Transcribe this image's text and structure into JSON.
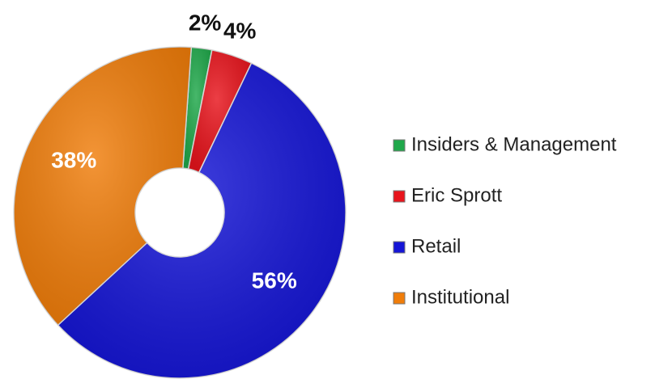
{
  "chart_data": {
    "type": "pie",
    "donut": true,
    "categories": [
      "Insiders & Management",
      "Eric Sprott",
      "Retail",
      "Institutional"
    ],
    "values": [
      2,
      4,
      56,
      38
    ],
    "value_labels": [
      "2%",
      "4%",
      "56%",
      "38%"
    ],
    "colors": [
      "#1fa84a",
      "#e8141c",
      "#1515d6",
      "#f07d0a"
    ],
    "legend": "right"
  }
}
